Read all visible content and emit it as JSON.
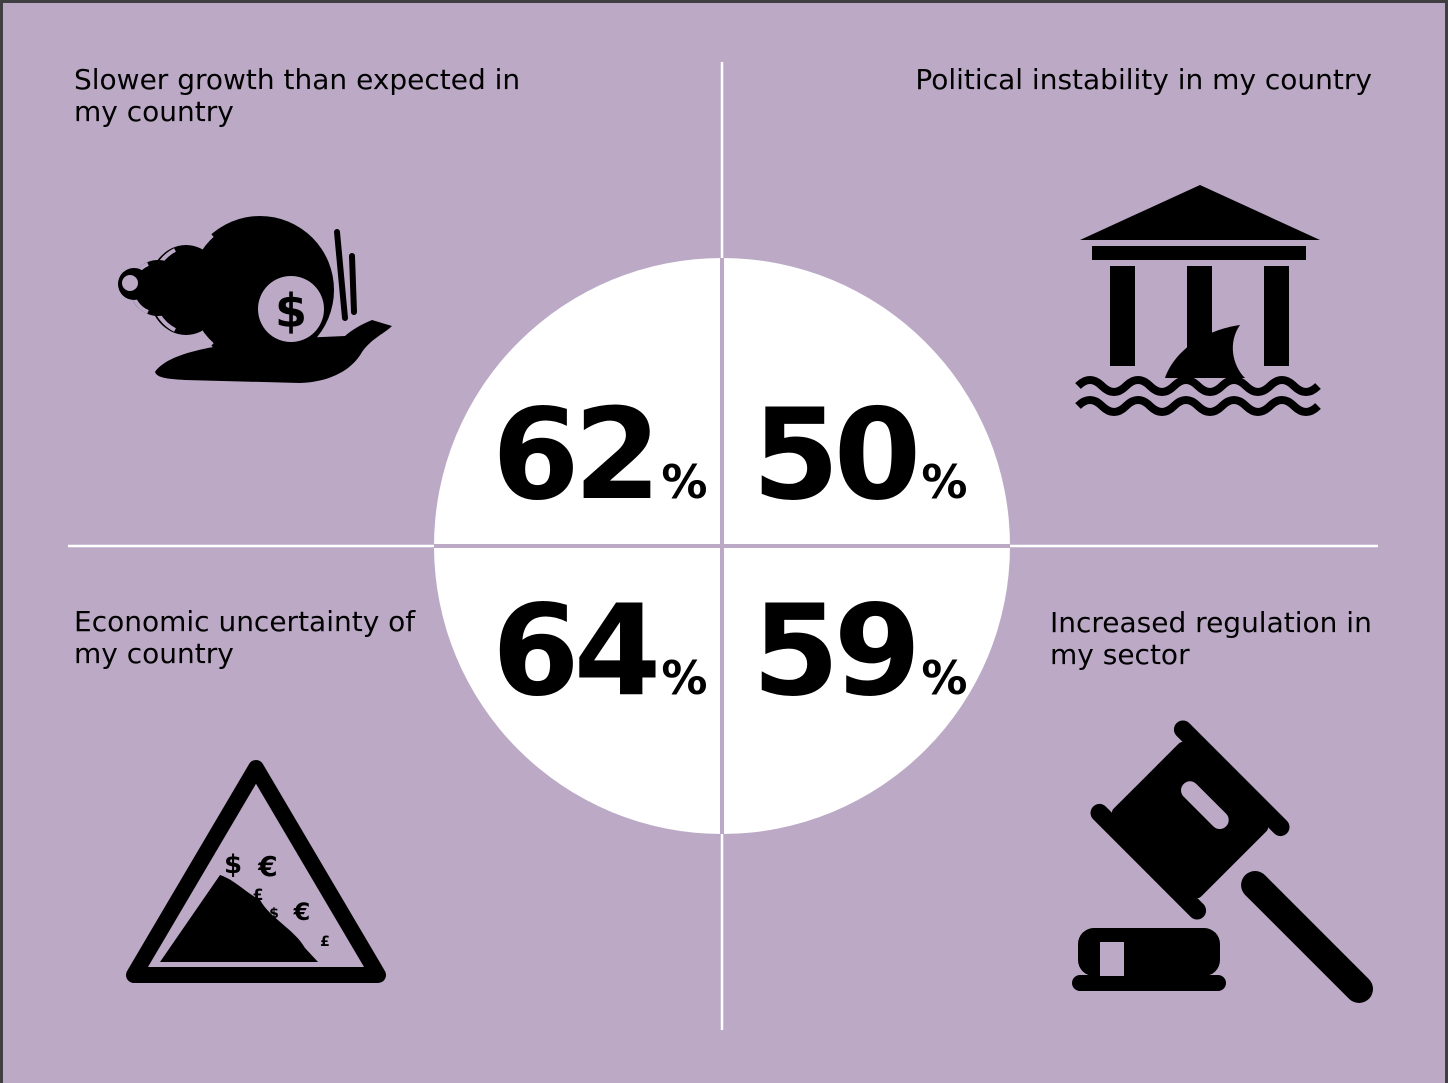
{
  "quadrants": {
    "top_left": {
      "label": "Slower growth than expected in my country",
      "value": "62",
      "unit": "%",
      "icon": "snail-dollar-icon"
    },
    "top_right": {
      "label": "Political instability in my country",
      "value": "50",
      "unit": "%",
      "icon": "government-building-shark-icon"
    },
    "bottom_left": {
      "label": "Economic uncertainty of my country",
      "value": "64",
      "unit": "%",
      "icon": "falling-currency-warning-icon"
    },
    "bottom_right": {
      "label": "Increased regulation in my sector",
      "value": "59",
      "unit": "%",
      "icon": "gavel-icon"
    }
  },
  "colors": {
    "background": "#bba9c6",
    "frame": "#3f3f41",
    "circle": "#ffffff",
    "ink": "#000000"
  }
}
